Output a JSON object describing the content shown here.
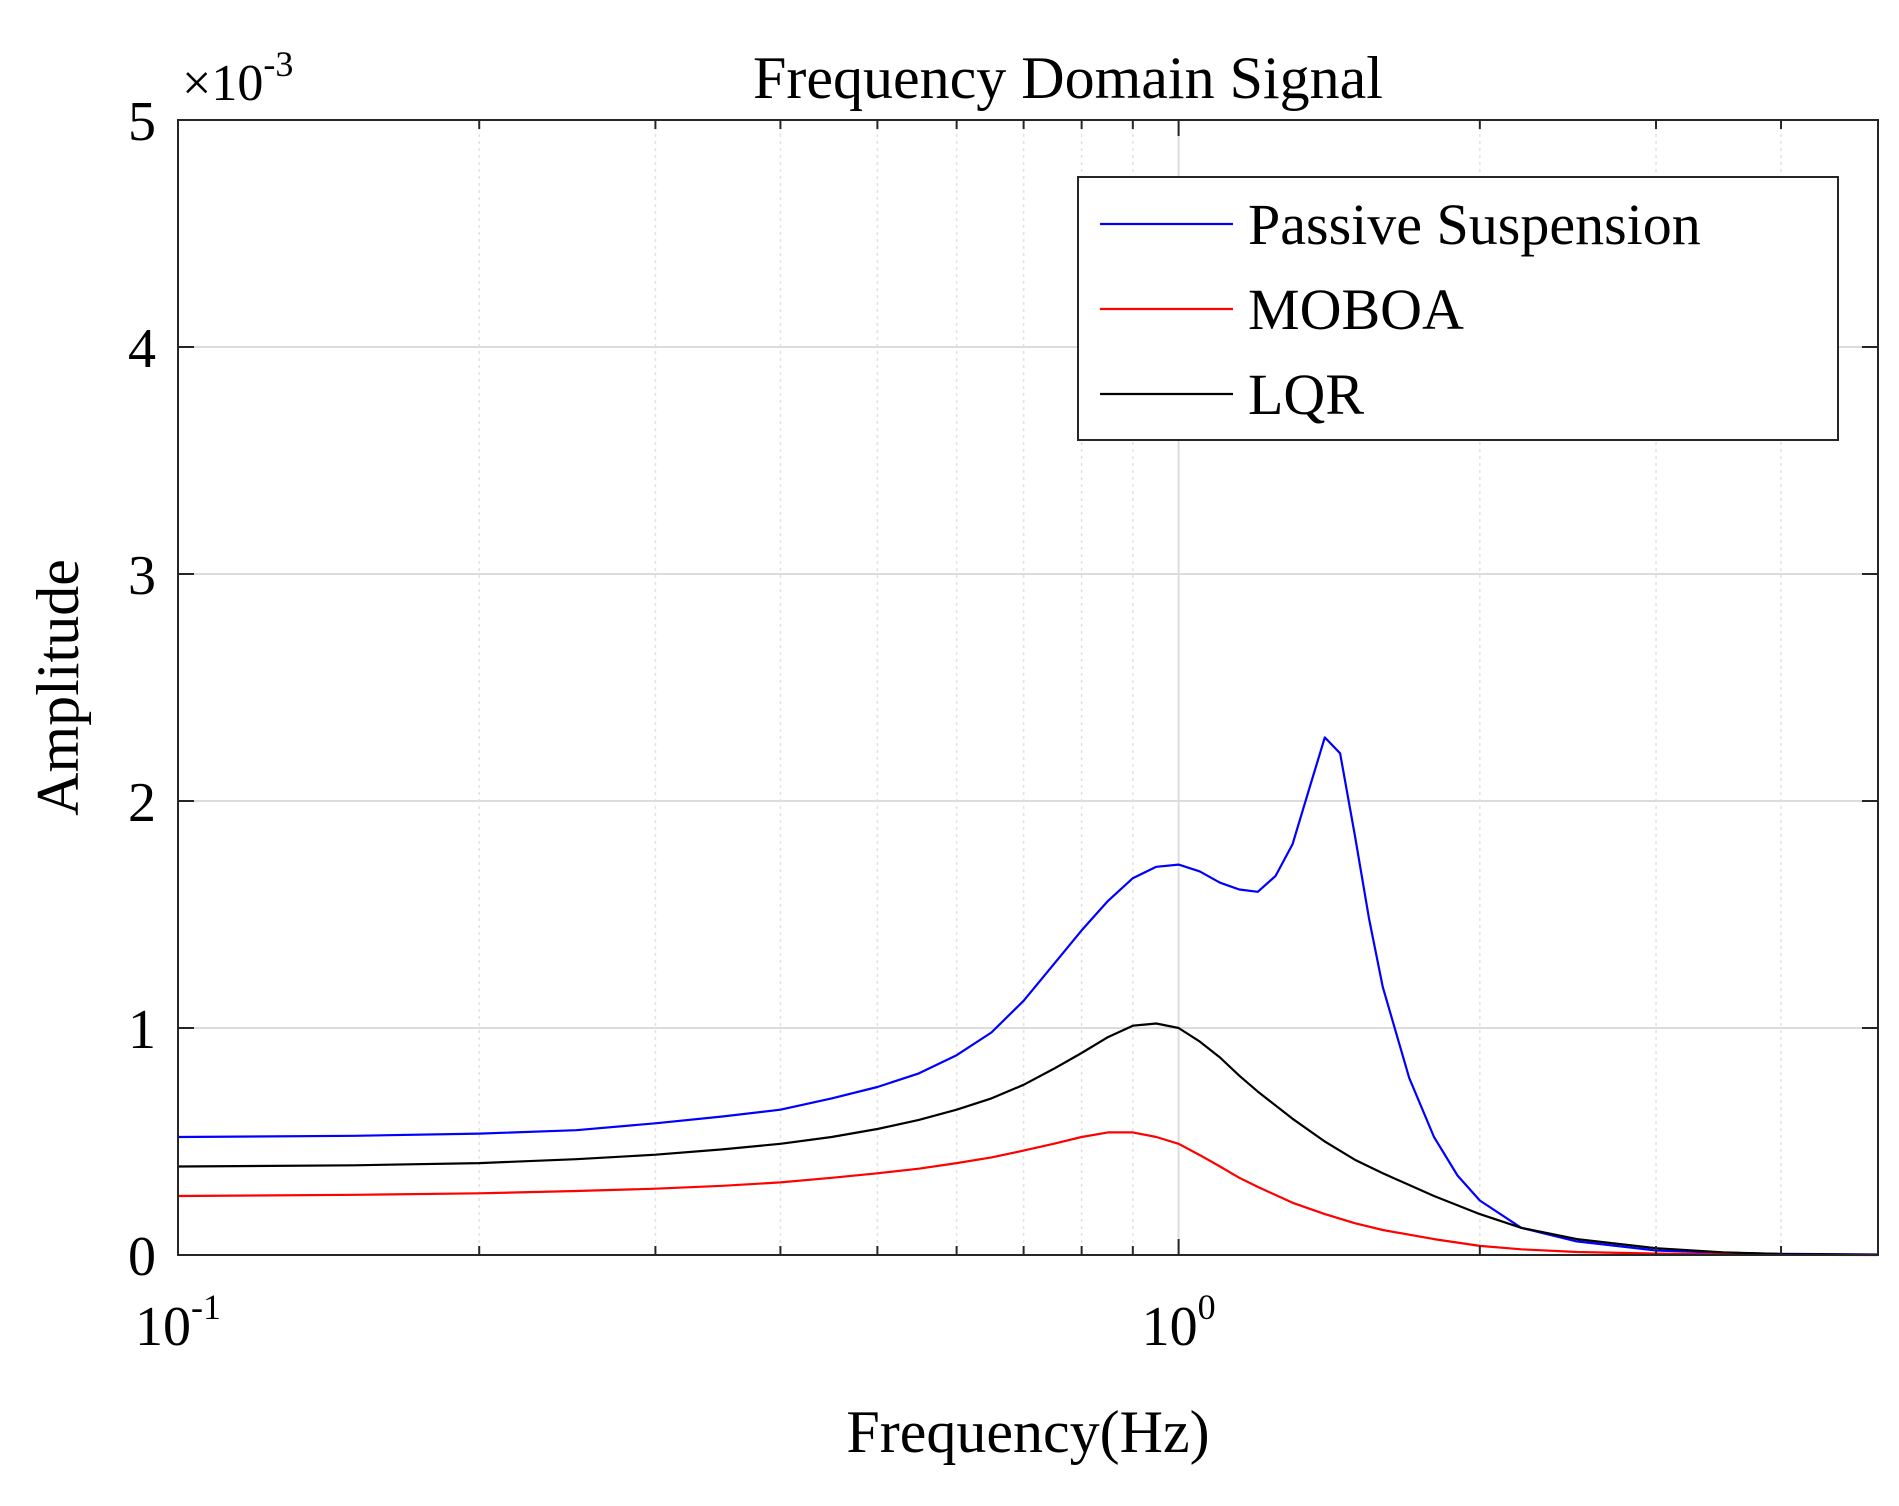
{
  "chart_data": {
    "type": "line",
    "title": "Frequency Domain Signal",
    "xlabel": "Frequency(Hz)",
    "ylabel": "Amplitude",
    "x_scale": "log",
    "xlim": [
      0.1,
      5.0
    ],
    "ylim": [
      0,
      0.005
    ],
    "y_multiplier": {
      "base": "10",
      "exponent": "-3",
      "prefix": "×"
    },
    "y_ticks": [
      {
        "value": 0,
        "label": "0"
      },
      {
        "value": 0.001,
        "label": "1"
      },
      {
        "value": 0.002,
        "label": "2"
      },
      {
        "value": 0.003,
        "label": "3"
      },
      {
        "value": 0.004,
        "label": "4"
      },
      {
        "value": 0.005,
        "label": "5"
      }
    ],
    "x_ticks": [
      {
        "value": 0.1,
        "base": "10",
        "exp": "-1"
      },
      {
        "value": 1.0,
        "base": "10",
        "exp": "0"
      }
    ],
    "grid": true,
    "legend_position": "top-right",
    "series": [
      {
        "name": "Passive Suspension",
        "color": "#0000ff",
        "x": [
          0.1,
          0.15,
          0.2,
          0.25,
          0.3,
          0.35,
          0.4,
          0.45,
          0.5,
          0.55,
          0.6,
          0.65,
          0.7,
          0.75,
          0.8,
          0.85,
          0.9,
          0.95,
          1.0,
          1.05,
          1.1,
          1.15,
          1.2,
          1.25,
          1.3,
          1.35,
          1.4,
          1.45,
          1.5,
          1.55,
          1.6,
          1.7,
          1.8,
          1.9,
          2.0,
          2.2,
          2.5,
          3.0,
          3.5,
          4.0,
          5.0
        ],
        "y": [
          0.00052,
          0.000525,
          0.000535,
          0.00055,
          0.00058,
          0.00061,
          0.00064,
          0.00069,
          0.00074,
          0.0008,
          0.00088,
          0.00098,
          0.00112,
          0.00128,
          0.00143,
          0.00156,
          0.00166,
          0.00171,
          0.00172,
          0.00169,
          0.00164,
          0.00161,
          0.0016,
          0.00167,
          0.00181,
          0.00205,
          0.00228,
          0.00221,
          0.00185,
          0.00148,
          0.00118,
          0.00078,
          0.00052,
          0.00035,
          0.00024,
          0.00012,
          6e-05,
          2e-05,
          1e-05,
          5e-06,
          2e-06
        ]
      },
      {
        "name": "MOBOA",
        "color": "#ff0000",
        "x": [
          0.1,
          0.15,
          0.2,
          0.25,
          0.3,
          0.35,
          0.4,
          0.45,
          0.5,
          0.55,
          0.6,
          0.65,
          0.7,
          0.75,
          0.8,
          0.85,
          0.9,
          0.95,
          1.0,
          1.05,
          1.1,
          1.15,
          1.2,
          1.3,
          1.4,
          1.5,
          1.6,
          1.8,
          2.0,
          2.2,
          2.5,
          3.0,
          3.5,
          4.0,
          5.0
        ],
        "y": [
          0.00026,
          0.000265,
          0.000272,
          0.000282,
          0.000292,
          0.000305,
          0.00032,
          0.00034,
          0.00036,
          0.00038,
          0.000405,
          0.00043,
          0.00046,
          0.00049,
          0.00052,
          0.00054,
          0.00054,
          0.00052,
          0.00049,
          0.00044,
          0.00039,
          0.00034,
          0.0003,
          0.00023,
          0.00018,
          0.00014,
          0.00011,
          7e-05,
          4e-05,
          2.5e-05,
          1.3e-05,
          6e-06,
          3e-06,
          1e-06,
          0.0
        ]
      },
      {
        "name": "LQR",
        "color": "#000000",
        "x": [
          0.1,
          0.15,
          0.2,
          0.25,
          0.3,
          0.35,
          0.4,
          0.45,
          0.5,
          0.55,
          0.6,
          0.65,
          0.7,
          0.75,
          0.8,
          0.85,
          0.9,
          0.95,
          1.0,
          1.05,
          1.1,
          1.15,
          1.2,
          1.3,
          1.4,
          1.5,
          1.6,
          1.8,
          2.0,
          2.2,
          2.5,
          3.0,
          3.5,
          4.0,
          5.0
        ],
        "y": [
          0.00039,
          0.000395,
          0.000405,
          0.000422,
          0.000442,
          0.000465,
          0.00049,
          0.00052,
          0.000555,
          0.000595,
          0.00064,
          0.00069,
          0.00075,
          0.00082,
          0.00089,
          0.00096,
          0.00101,
          0.00102,
          0.001,
          0.00094,
          0.00087,
          0.00079,
          0.00072,
          0.0006,
          0.0005,
          0.00042,
          0.00036,
          0.00026,
          0.00018,
          0.00012,
          7e-05,
          3e-05,
          1.2e-05,
          4e-06,
          1e-06
        ]
      }
    ]
  }
}
